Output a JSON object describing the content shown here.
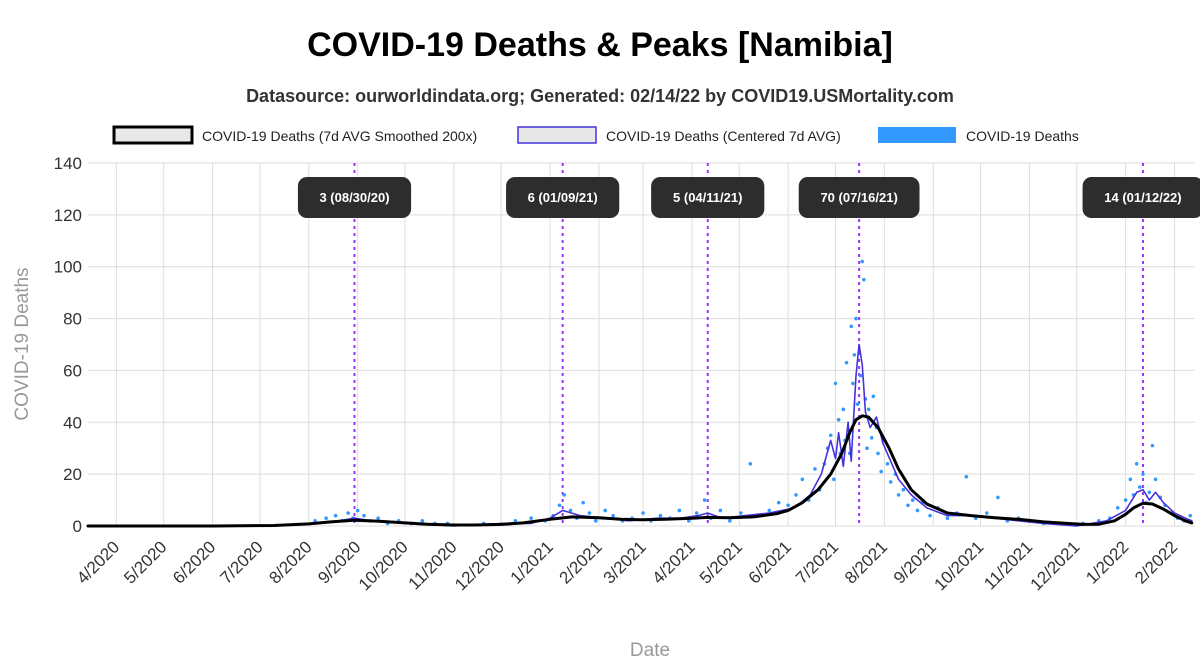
{
  "chart_data": {
    "type": "line",
    "title": "COVID-19 Deaths & Peaks [Namibia]",
    "subtitle": "Datasource: ourworldindata.org; Generated: 02/14/22 by COVID19.USMortality.com",
    "xlabel": "Date",
    "ylabel": "COVID-19 Deaths",
    "ylim": [
      0,
      140
    ],
    "yticks": [
      0,
      20,
      40,
      60,
      80,
      100,
      120,
      140
    ],
    "xlim": [
      "2020-03-14",
      "2022-02-14"
    ],
    "xticks": [
      {
        "date": "2020-04-01",
        "label": "4/2020"
      },
      {
        "date": "2020-05-01",
        "label": "5/2020"
      },
      {
        "date": "2020-06-01",
        "label": "6/2020"
      },
      {
        "date": "2020-07-01",
        "label": "7/2020"
      },
      {
        "date": "2020-08-01",
        "label": "8/2020"
      },
      {
        "date": "2020-09-01",
        "label": "9/2020"
      },
      {
        "date": "2020-10-01",
        "label": "10/2020"
      },
      {
        "date": "2020-11-01",
        "label": "11/2020"
      },
      {
        "date": "2020-12-01",
        "label": "12/2020"
      },
      {
        "date": "2021-01-01",
        "label": "1/2021"
      },
      {
        "date": "2021-02-01",
        "label": "2/2021"
      },
      {
        "date": "2021-03-01",
        "label": "3/2021"
      },
      {
        "date": "2021-04-01",
        "label": "4/2021"
      },
      {
        "date": "2021-05-01",
        "label": "5/2021"
      },
      {
        "date": "2021-06-01",
        "label": "6/2021"
      },
      {
        "date": "2021-07-01",
        "label": "7/2021"
      },
      {
        "date": "2021-08-01",
        "label": "8/2021"
      },
      {
        "date": "2021-09-01",
        "label": "9/2021"
      },
      {
        "date": "2021-10-01",
        "label": "10/2021"
      },
      {
        "date": "2021-11-01",
        "label": "11/2021"
      },
      {
        "date": "2021-12-01",
        "label": "12/2021"
      },
      {
        "date": "2022-01-01",
        "label": "1/2022"
      },
      {
        "date": "2022-02-01",
        "label": "2/2022"
      }
    ],
    "grid": true,
    "legend_position": "top",
    "series": [
      {
        "name": "COVID-19 Deaths (7d AVG Smoothed 200x)",
        "style": "line",
        "color": "#000000",
        "points": [
          [
            "2020-03-14",
            0
          ],
          [
            "2020-06-01",
            0
          ],
          [
            "2020-07-10",
            0.2
          ],
          [
            "2020-08-01",
            0.8
          ],
          [
            "2020-08-15",
            1.6
          ],
          [
            "2020-08-30",
            2.2
          ],
          [
            "2020-09-15",
            1.8
          ],
          [
            "2020-10-01",
            1.2
          ],
          [
            "2020-10-15",
            0.7
          ],
          [
            "2020-11-01",
            0.4
          ],
          [
            "2020-11-15",
            0.4
          ],
          [
            "2020-12-01",
            0.6
          ],
          [
            "2020-12-15",
            1.2
          ],
          [
            "2021-01-01",
            2.6
          ],
          [
            "2021-01-15",
            3.5
          ],
          [
            "2021-02-01",
            3.2
          ],
          [
            "2021-02-15",
            2.6
          ],
          [
            "2021-03-01",
            2.4
          ],
          [
            "2021-03-15",
            2.6
          ],
          [
            "2021-04-01",
            3.0
          ],
          [
            "2021-04-11",
            3.3
          ],
          [
            "2021-04-25",
            3.2
          ],
          [
            "2021-05-10",
            3.5
          ],
          [
            "2021-05-25",
            4.8
          ],
          [
            "2021-06-01",
            6.0
          ],
          [
            "2021-06-10",
            9.0
          ],
          [
            "2021-06-20",
            14.0
          ],
          [
            "2021-06-28",
            20.0
          ],
          [
            "2021-07-05",
            28.0
          ],
          [
            "2021-07-10",
            36.0
          ],
          [
            "2021-07-14",
            41.0
          ],
          [
            "2021-07-18",
            42.5
          ],
          [
            "2021-07-22",
            42.0
          ],
          [
            "2021-07-28",
            38.0
          ],
          [
            "2021-08-04",
            30.0
          ],
          [
            "2021-08-10",
            22.0
          ],
          [
            "2021-08-18",
            14.0
          ],
          [
            "2021-08-28",
            8.5
          ],
          [
            "2021-09-10",
            5.0
          ],
          [
            "2021-09-25",
            4.0
          ],
          [
            "2021-10-10",
            3.2
          ],
          [
            "2021-10-25",
            2.6
          ],
          [
            "2021-11-10",
            1.6
          ],
          [
            "2021-11-25",
            1.0
          ],
          [
            "2021-12-05",
            0.6
          ],
          [
            "2021-12-15",
            0.7
          ],
          [
            "2021-12-25",
            2.0
          ],
          [
            "2022-01-01",
            4.5
          ],
          [
            "2022-01-06",
            7.0
          ],
          [
            "2022-01-12",
            8.8
          ],
          [
            "2022-01-18",
            8.5
          ],
          [
            "2022-01-25",
            6.5
          ],
          [
            "2022-02-01",
            4.0
          ],
          [
            "2022-02-08",
            2.0
          ],
          [
            "2022-02-12",
            1.2
          ]
        ]
      },
      {
        "name": "COVID-19 Deaths (Centered 7d AVG)",
        "style": "line",
        "color": "#4433dd",
        "points": [
          [
            "2020-03-14",
            0
          ],
          [
            "2020-07-10",
            0
          ],
          [
            "2020-08-01",
            1
          ],
          [
            "2020-08-20",
            2
          ],
          [
            "2020-08-30",
            3
          ],
          [
            "2020-09-10",
            2
          ],
          [
            "2020-10-01",
            1
          ],
          [
            "2020-11-01",
            0
          ],
          [
            "2020-12-01",
            1
          ],
          [
            "2020-12-20",
            1
          ],
          [
            "2021-01-01",
            3
          ],
          [
            "2021-01-09",
            6
          ],
          [
            "2021-01-20",
            4
          ],
          [
            "2021-02-05",
            3
          ],
          [
            "2021-02-20",
            2
          ],
          [
            "2021-03-10",
            3
          ],
          [
            "2021-03-25",
            3
          ],
          [
            "2021-04-05",
            4
          ],
          [
            "2021-04-11",
            5
          ],
          [
            "2021-04-20",
            3
          ],
          [
            "2021-05-05",
            4
          ],
          [
            "2021-05-20",
            5
          ],
          [
            "2021-06-05",
            7
          ],
          [
            "2021-06-15",
            12
          ],
          [
            "2021-06-22",
            20
          ],
          [
            "2021-06-28",
            33
          ],
          [
            "2021-07-01",
            26
          ],
          [
            "2021-07-03",
            36
          ],
          [
            "2021-07-06",
            23
          ],
          [
            "2021-07-09",
            40
          ],
          [
            "2021-07-11",
            25
          ],
          [
            "2021-07-14",
            58
          ],
          [
            "2021-07-16",
            70
          ],
          [
            "2021-07-18",
            62
          ],
          [
            "2021-07-20",
            44
          ],
          [
            "2021-07-23",
            38
          ],
          [
            "2021-07-27",
            42
          ],
          [
            "2021-07-31",
            32
          ],
          [
            "2021-08-05",
            25
          ],
          [
            "2021-08-10",
            18
          ],
          [
            "2021-08-18",
            12
          ],
          [
            "2021-08-28",
            7
          ],
          [
            "2021-09-10",
            4
          ],
          [
            "2021-09-25",
            4
          ],
          [
            "2021-10-10",
            3
          ],
          [
            "2021-10-25",
            2
          ],
          [
            "2021-11-10",
            1
          ],
          [
            "2021-12-01",
            0
          ],
          [
            "2021-12-20",
            2
          ],
          [
            "2022-01-01",
            6
          ],
          [
            "2022-01-08",
            13
          ],
          [
            "2022-01-12",
            14
          ],
          [
            "2022-01-16",
            10
          ],
          [
            "2022-01-20",
            13
          ],
          [
            "2022-01-25",
            9
          ],
          [
            "2022-02-01",
            5
          ],
          [
            "2022-02-08",
            3
          ],
          [
            "2022-02-12",
            2
          ]
        ]
      },
      {
        "name": "COVID-19 Deaths",
        "style": "scatter",
        "color": "#3399ff",
        "points": [
          [
            "2020-08-05",
            2
          ],
          [
            "2020-08-12",
            3
          ],
          [
            "2020-08-18",
            4
          ],
          [
            "2020-08-22",
            2
          ],
          [
            "2020-08-26",
            5
          ],
          [
            "2020-08-29",
            3
          ],
          [
            "2020-09-01",
            6
          ],
          [
            "2020-09-05",
            4
          ],
          [
            "2020-09-09",
            2
          ],
          [
            "2020-09-14",
            3
          ],
          [
            "2020-09-20",
            1
          ],
          [
            "2020-09-27",
            2
          ],
          [
            "2020-10-05",
            1
          ],
          [
            "2020-10-12",
            2
          ],
          [
            "2020-10-20",
            1
          ],
          [
            "2020-10-28",
            1
          ],
          [
            "2020-11-20",
            1
          ],
          [
            "2020-12-10",
            2
          ],
          [
            "2020-12-20",
            3
          ],
          [
            "2020-12-29",
            2
          ],
          [
            "2021-01-03",
            4
          ],
          [
            "2021-01-07",
            8
          ],
          [
            "2021-01-10",
            12
          ],
          [
            "2021-01-14",
            6
          ],
          [
            "2021-01-18",
            3
          ],
          [
            "2021-01-22",
            9
          ],
          [
            "2021-01-26",
            5
          ],
          [
            "2021-01-30",
            2
          ],
          [
            "2021-02-05",
            6
          ],
          [
            "2021-02-10",
            4
          ],
          [
            "2021-02-16",
            2
          ],
          [
            "2021-02-22",
            3
          ],
          [
            "2021-03-01",
            5
          ],
          [
            "2021-03-06",
            2
          ],
          [
            "2021-03-12",
            4
          ],
          [
            "2021-03-18",
            3
          ],
          [
            "2021-03-24",
            6
          ],
          [
            "2021-03-30",
            2
          ],
          [
            "2021-04-04",
            5
          ],
          [
            "2021-04-09",
            10
          ],
          [
            "2021-04-13",
            3
          ],
          [
            "2021-04-19",
            6
          ],
          [
            "2021-04-25",
            2
          ],
          [
            "2021-05-02",
            5
          ],
          [
            "2021-05-08",
            24
          ],
          [
            "2021-05-14",
            4
          ],
          [
            "2021-05-20",
            6
          ],
          [
            "2021-05-26",
            9
          ],
          [
            "2021-06-01",
            8
          ],
          [
            "2021-06-06",
            12
          ],
          [
            "2021-06-10",
            18
          ],
          [
            "2021-06-14",
            10
          ],
          [
            "2021-06-18",
            22
          ],
          [
            "2021-06-21",
            14
          ],
          [
            "2021-06-24",
            24
          ],
          [
            "2021-06-26",
            30
          ],
          [
            "2021-06-28",
            35
          ],
          [
            "2021-06-30",
            18
          ],
          [
            "2021-07-01",
            55
          ],
          [
            "2021-07-03",
            41
          ],
          [
            "2021-07-04",
            28
          ],
          [
            "2021-07-06",
            45
          ],
          [
            "2021-07-07",
            33
          ],
          [
            "2021-07-08",
            63
          ],
          [
            "2021-07-10",
            28
          ],
          [
            "2021-07-11",
            77
          ],
          [
            "2021-07-12",
            55
          ],
          [
            "2021-07-13",
            66
          ],
          [
            "2021-07-14",
            80
          ],
          [
            "2021-07-15",
            47
          ],
          [
            "2021-07-16",
            67
          ],
          [
            "2021-07-17",
            58
          ],
          [
            "2021-07-18",
            102
          ],
          [
            "2021-07-19",
            95
          ],
          [
            "2021-07-20",
            49
          ],
          [
            "2021-07-21",
            30
          ],
          [
            "2021-07-22",
            45
          ],
          [
            "2021-07-24",
            34
          ],
          [
            "2021-07-25",
            50
          ],
          [
            "2021-07-27",
            38
          ],
          [
            "2021-07-28",
            28
          ],
          [
            "2021-07-30",
            21
          ],
          [
            "2021-08-01",
            33
          ],
          [
            "2021-08-03",
            24
          ],
          [
            "2021-08-05",
            17
          ],
          [
            "2021-08-08",
            20
          ],
          [
            "2021-08-10",
            12
          ],
          [
            "2021-08-13",
            14
          ],
          [
            "2021-08-16",
            8
          ],
          [
            "2021-08-19",
            10
          ],
          [
            "2021-08-22",
            6
          ],
          [
            "2021-08-25",
            9
          ],
          [
            "2021-08-30",
            4
          ],
          [
            "2021-09-04",
            7
          ],
          [
            "2021-09-10",
            3
          ],
          [
            "2021-09-16",
            5
          ],
          [
            "2021-09-22",
            19
          ],
          [
            "2021-09-28",
            3
          ],
          [
            "2021-10-05",
            5
          ],
          [
            "2021-10-12",
            11
          ],
          [
            "2021-10-18",
            2
          ],
          [
            "2021-10-25",
            3
          ],
          [
            "2021-11-01",
            2
          ],
          [
            "2021-11-10",
            1
          ],
          [
            "2021-11-20",
            1
          ],
          [
            "2021-12-05",
            1
          ],
          [
            "2021-12-15",
            2
          ],
          [
            "2021-12-22",
            3
          ],
          [
            "2021-12-27",
            7
          ],
          [
            "2022-01-01",
            10
          ],
          [
            "2022-01-04",
            18
          ],
          [
            "2022-01-06",
            12
          ],
          [
            "2022-01-08",
            24
          ],
          [
            "2022-01-10",
            15
          ],
          [
            "2022-01-12",
            20
          ],
          [
            "2022-01-14",
            9
          ],
          [
            "2022-01-16",
            13
          ],
          [
            "2022-01-18",
            31
          ],
          [
            "2022-01-20",
            18
          ],
          [
            "2022-01-23",
            11
          ],
          [
            "2022-01-26",
            8
          ],
          [
            "2022-01-30",
            5
          ],
          [
            "2022-02-03",
            3
          ],
          [
            "2022-02-07",
            2
          ],
          [
            "2022-02-11",
            4
          ]
        ]
      }
    ],
    "peaks": [
      {
        "date": "2020-08-30",
        "label": "3 (08/30/20)"
      },
      {
        "date": "2021-01-09",
        "label": "6 (01/09/21)"
      },
      {
        "date": "2021-04-11",
        "label": "5 (04/11/21)"
      },
      {
        "date": "2021-07-16",
        "label": "70 (07/16/21)"
      },
      {
        "date": "2022-01-12",
        "label": "14 (01/12/22)"
      }
    ],
    "colors": {
      "peak_line": "#9933ff",
      "peak_box": "#2d2d2d",
      "grid": "#dddddd"
    }
  }
}
